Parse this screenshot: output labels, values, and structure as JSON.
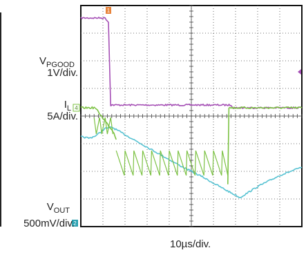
{
  "chart_data": {
    "type": "line",
    "title": "",
    "x_axis": {
      "label": "10µs/div.",
      "divisions": 10,
      "units": "div"
    },
    "y_axis": {
      "divisions": 8,
      "units": "div"
    },
    "grid": true,
    "labels": {
      "vpgood_main": "V",
      "vpgood_sub": "PGOOD",
      "vpgood_scale": "1V/div.",
      "il_main": "I",
      "il_sub": "L",
      "il_scale": "5A/div.",
      "vout_main": "V",
      "vout_sub": "OUT",
      "vout_scale": "500mV/div."
    },
    "markers": {
      "pgood_channel": "1",
      "il_channel": "4",
      "vout_channel": "2"
    },
    "series": [
      {
        "channel": "1",
        "color": "#a54fb5",
        "x": [
          0,
          1.1,
          1.25,
          1.35,
          1.4,
          6.8,
          6.9,
          10
        ],
        "y": [
          7.55,
          7.55,
          7.4,
          4.4,
          4.4,
          4.4,
          4.3,
          4.3
        ]
      },
      {
        "channel": "2",
        "color": "#56c2d2",
        "x": [
          0,
          0.4,
          0.7,
          1.1,
          1.4,
          2.5,
          3.5,
          4.5,
          5.5,
          6.5,
          7.2,
          8.0,
          9.0,
          10
        ],
        "y": [
          3.25,
          3.2,
          3.3,
          3.55,
          3.6,
          3.1,
          2.65,
          2.2,
          1.8,
          1.35,
          1.05,
          1.45,
          1.85,
          2.15
        ]
      },
      {
        "channel": "4",
        "color": "#7bc142",
        "segments": [
          {
            "x": [
              0,
              0.65
            ],
            "y": [
              4.3,
              4.3
            ]
          },
          {
            "x": [
              0.65,
              1.5,
              1.6
            ],
            "y": [
              4.3,
              3.4,
              3.15
            ]
          },
          {
            "x": [
              1.6,
              6.65
            ],
            "ramp": {
              "top": 2.75,
              "bottom": 1.85,
              "period": 0.4,
              "decay": 0.03
            }
          },
          {
            "x": [
              6.65,
              6.7,
              10
            ],
            "y": [
              1.55,
              4.3,
              4.3
            ]
          },
          {
            "x": [
              0.6,
              1.6
            ],
            "ramp": {
              "top": 3.95,
              "bottom": 3.35,
              "period": 0.25,
              "decay": 0.15
            }
          }
        ]
      }
    ]
  }
}
